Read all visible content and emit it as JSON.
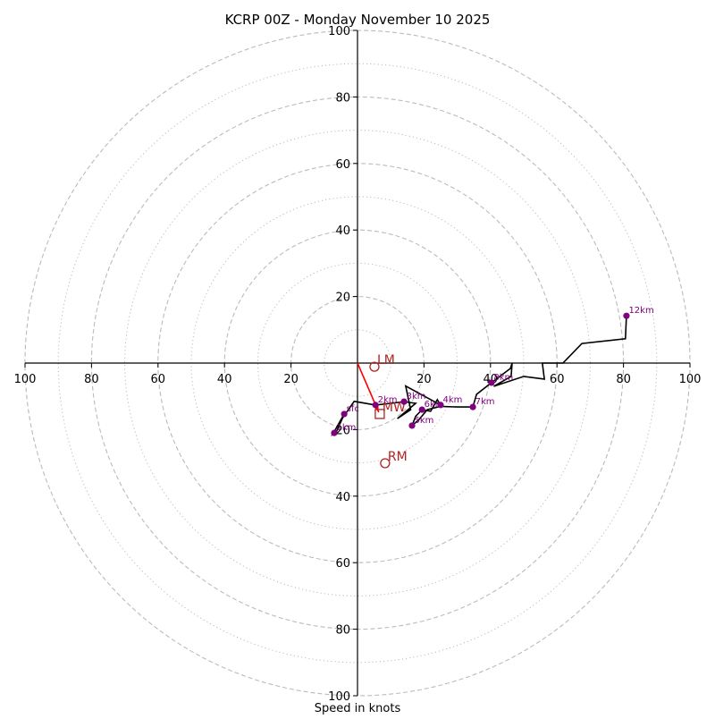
{
  "chart_data": {
    "type": "hodograph",
    "title": "KCRP 00Z - Monday November 10 2025",
    "xlabel": "Speed in knots",
    "ylabel": "",
    "xlim": [
      -100,
      100
    ],
    "ylim": [
      -100,
      100
    ],
    "x_ticks": [
      100,
      80,
      60,
      40,
      20,
      20,
      40,
      60,
      80,
      100
    ],
    "x_tick_values": [
      -100,
      -80,
      -60,
      -40,
      -20,
      20,
      40,
      60,
      80,
      100
    ],
    "y_ticks": [
      100,
      80,
      60,
      40,
      20,
      20,
      40,
      60,
      80,
      100
    ],
    "y_tick_values": [
      100,
      80,
      60,
      40,
      20,
      -20,
      -40,
      -60,
      -80,
      -100
    ],
    "rings_dashed": [
      20,
      40,
      60,
      80,
      100
    ],
    "rings_dotted": [
      10,
      30,
      50,
      70,
      90
    ],
    "grid": true,
    "colors": {
      "hodo_line": "#000000",
      "height_marker": "#800080",
      "storm_motion": "#b22222",
      "shear_vector": "#ff0000",
      "ring": "#bbbbbb"
    },
    "hodograph_path": [
      [
        -4.0,
        -15.3
      ],
      [
        -7.5,
        -21.5
      ],
      [
        -6.5,
        -21.0
      ],
      [
        -4.5,
        -16.5
      ],
      [
        -1.0,
        -11.5
      ],
      [
        5.4,
        -12.6
      ],
      [
        10.0,
        -12.1
      ],
      [
        14.0,
        -11.6
      ],
      [
        17.5,
        -12.1
      ],
      [
        12.0,
        -16.7
      ],
      [
        16.0,
        -14.0
      ],
      [
        14.5,
        -6.9
      ],
      [
        25.0,
        -12.6
      ],
      [
        24.0,
        -11.0
      ],
      [
        22.0,
        -14.5
      ],
      [
        19.4,
        -14.0
      ],
      [
        17.5,
        -16.0
      ],
      [
        16.4,
        -18.8
      ],
      [
        18.5,
        -17.0
      ],
      [
        21.0,
        -14.0
      ],
      [
        25.0,
        -13.0
      ],
      [
        30.0,
        -13.2
      ],
      [
        34.7,
        -13.2
      ],
      [
        35.8,
        -9.4
      ],
      [
        40.3,
        -5.9
      ],
      [
        46.0,
        -1.6
      ],
      [
        46.5,
        0.0
      ],
      [
        46.2,
        -4.0
      ],
      [
        41.0,
        -7.0
      ],
      [
        50.0,
        -4.0
      ],
      [
        56.2,
        -4.8
      ],
      [
        55.6,
        0.0
      ],
      [
        61.8,
        0.0
      ],
      [
        67.5,
        5.9
      ],
      [
        80.6,
        7.3
      ],
      [
        80.9,
        14.2
      ]
    ],
    "height_markers": [
      {
        "label": "sfc",
        "u": -4.0,
        "v": -15.3
      },
      {
        "label": "1km",
        "u": -7.0,
        "v": -21.0
      },
      {
        "label": "2km",
        "u": 5.4,
        "v": -12.6
      },
      {
        "label": "3km",
        "u": 14.0,
        "v": -11.6
      },
      {
        "label": "4km",
        "u": 25.0,
        "v": -12.6
      },
      {
        "label": "5km",
        "u": 16.4,
        "v": -18.8
      },
      {
        "label": "6km",
        "u": 19.4,
        "v": -14.0
      },
      {
        "label": "7km",
        "u": 34.7,
        "v": -13.2
      },
      {
        "label": "8km",
        "u": 40.3,
        "v": -5.9
      },
      {
        "label": "12km",
        "u": 80.9,
        "v": 14.2
      }
    ],
    "storm_motions": [
      {
        "label": "LM",
        "u": 5.1,
        "v": -1.1,
        "marker": "circle"
      },
      {
        "label": "MW",
        "u": 6.7,
        "v": -15.3,
        "marker": "square"
      },
      {
        "label": "RM",
        "u": 8.3,
        "v": -30.1,
        "marker": "circle"
      }
    ],
    "shear_vector": {
      "from": [
        0,
        0
      ],
      "to": [
        6.4,
        -14.8
      ]
    }
  }
}
